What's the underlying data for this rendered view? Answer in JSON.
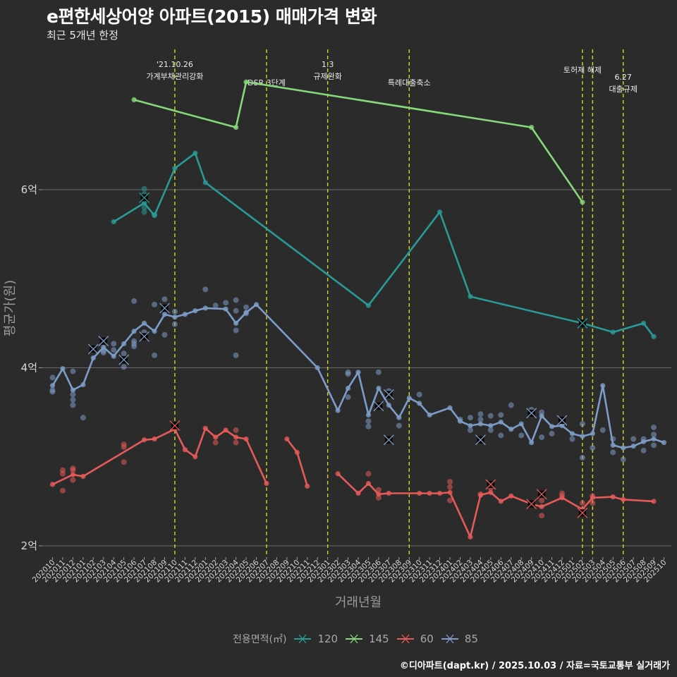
{
  "header": {
    "title": "e편한세상어양 아파트(2015) 매매가격 변화",
    "subtitle": "최근 5개년 한정"
  },
  "caption": "©디아파트(dapt.kr) / 2025.10.03 / 자료=국토교통부 실거래가",
  "legend": {
    "title": "전용면적(㎡)",
    "items": [
      {
        "label": "120",
        "color": "#2a9a96"
      },
      {
        "label": "145",
        "color": "#86d97a"
      },
      {
        "label": "60",
        "color": "#e65a5a"
      },
      {
        "label": "85",
        "color": "#7d9dc8"
      }
    ]
  },
  "chart_data": {
    "type": "line",
    "title": "e편한세상어양 아파트(2015) 매매가격 변화",
    "subtitle": "최근 5개년 한정",
    "xlabel": "거래년월",
    "ylabel": "평균가(원)",
    "ylim": [
      1.95,
      7.35
    ],
    "yunit": "억",
    "yticks": [
      {
        "value": 2,
        "label": "2억"
      },
      {
        "value": 4,
        "label": "4억"
      },
      {
        "value": 6,
        "label": "6억"
      }
    ],
    "grid": true,
    "legend_position": "bottom",
    "x": [
      "202010",
      "202011",
      "202012",
      "202101",
      "202102",
      "202103",
      "202104",
      "202105",
      "202106",
      "202107",
      "202108",
      "202109",
      "202110",
      "202111",
      "202112",
      "202201",
      "202202",
      "202203",
      "202204",
      "202205",
      "202206",
      "202207",
      "202208",
      "202209",
      "202210",
      "202211",
      "202212",
      "202301",
      "202302",
      "202303",
      "202304",
      "202305",
      "202306",
      "202307",
      "202308",
      "202309",
      "202310",
      "202311",
      "202312",
      "202401",
      "202402",
      "202403",
      "202404",
      "202405",
      "202406",
      "202407",
      "202408",
      "202409",
      "202410",
      "202411",
      "202412",
      "202501",
      "202502",
      "202503",
      "202504",
      "202505",
      "202506",
      "202507",
      "202508",
      "202509",
      "202510"
    ],
    "annotations": [
      {
        "month": "202110",
        "lines": [
          "'21.10.26",
          "가계부채관리강화"
        ]
      },
      {
        "month": "202207",
        "lines": [
          "DSR 3단계"
        ]
      },
      {
        "month": "202301",
        "lines": [
          "1.3",
          "규제완화"
        ]
      },
      {
        "month": "202309",
        "lines": [
          "특례대출축소"
        ]
      },
      {
        "month": "202502",
        "lines": [
          "토허제 해제"
        ]
      },
      {
        "month": "202503",
        "lines": []
      },
      {
        "month": "202506",
        "lines": [
          "6.27",
          "대출규제"
        ]
      }
    ],
    "series": [
      {
        "name": "120",
        "color": "#2a9a96",
        "segments": [
          [
            [
              "202104",
              5.64
            ],
            [
              "202107",
              5.85
            ],
            [
              "202108",
              5.71
            ],
            [
              "202110",
              6.24
            ],
            [
              "202112",
              6.41
            ],
            [
              "202201",
              6.08
            ],
            [
              "202305",
              4.7
            ],
            [
              "202312",
              5.75
            ],
            [
              "202403",
              4.8
            ],
            [
              "202502",
              4.5
            ],
            [
              "202505",
              4.4
            ],
            [
              "202508",
              4.5
            ],
            [
              "202509",
              4.35
            ]
          ]
        ],
        "points": [
          [
            "202107",
            6.01
          ],
          [
            "202107",
            5.95
          ],
          [
            "202107",
            5.8
          ],
          [
            "202107",
            5.75
          ],
          [
            "202108",
            5.72
          ],
          [
            "202502",
            4.5
          ]
        ],
        "cancelled": [
          [
            "202107",
            5.91
          ],
          [
            "202502",
            4.5
          ]
        ]
      },
      {
        "name": "145",
        "color": "#86d97a",
        "segments": [
          [
            [
              "202106",
              7.01
            ],
            [
              "202204",
              6.7
            ],
            [
              "202205",
              7.21
            ],
            [
              "202409",
              6.7
            ],
            [
              "202502",
              5.86
            ]
          ]
        ],
        "points": [],
        "cancelled": []
      },
      {
        "name": "60",
        "color": "#e65a5a",
        "segments": [
          [
            [
              "202010",
              2.69
            ],
            [
              "202012",
              2.8
            ],
            [
              "202101",
              2.78
            ],
            [
              "202107",
              3.19
            ],
            [
              "202108",
              3.2
            ],
            [
              "202110",
              3.31
            ],
            [
              "202111",
              3.08
            ],
            [
              "202112",
              3.0
            ],
            [
              "202201",
              3.32
            ],
            [
              "202202",
              3.22
            ],
            [
              "202203",
              3.3
            ],
            [
              "202204",
              3.22
            ],
            [
              "202205",
              3.2
            ],
            [
              "202207",
              2.7
            ]
          ],
          [
            [
              "202209",
              3.2
            ],
            [
              "202210",
              3.05
            ],
            [
              "202211",
              2.67
            ]
          ],
          [
            [
              "202302",
              2.81
            ],
            [
              "202304",
              2.59
            ],
            [
              "202305",
              2.7
            ],
            [
              "202306",
              2.58
            ],
            [
              "202307",
              2.59
            ],
            [
              "202310",
              2.59
            ],
            [
              "202311",
              2.59
            ],
            [
              "202312",
              2.59
            ],
            [
              "202401",
              2.6
            ],
            [
              "202403",
              2.1
            ],
            [
              "202404",
              2.57
            ],
            [
              "202405",
              2.6
            ],
            [
              "202406",
              2.5
            ],
            [
              "202407",
              2.56
            ],
            [
              "202409",
              2.47
            ],
            [
              "202410",
              2.44
            ],
            [
              "202412",
              2.54
            ],
            [
              "202502",
              2.41
            ],
            [
              "202503",
              2.54
            ],
            [
              "202505",
              2.55
            ],
            [
              "202506",
              2.52
            ],
            [
              "202509",
              2.5
            ]
          ]
        ],
        "points": [
          [
            "202011",
            2.85
          ],
          [
            "202011",
            2.81
          ],
          [
            "202011",
            2.62
          ],
          [
            "202012",
            2.87
          ],
          [
            "202012",
            2.85
          ],
          [
            "202012",
            2.74
          ],
          [
            "202105",
            3.14
          ],
          [
            "202105",
            3.11
          ],
          [
            "202105",
            2.94
          ],
          [
            "202202",
            3.16
          ],
          [
            "202204",
            3.3
          ],
          [
            "202204",
            3.16
          ],
          [
            "202305",
            2.81
          ],
          [
            "202306",
            2.63
          ],
          [
            "202306",
            2.54
          ],
          [
            "202401",
            2.72
          ],
          [
            "202401",
            2.66
          ],
          [
            "202401",
            2.51
          ],
          [
            "202404",
            2.58
          ],
          [
            "202405",
            2.65
          ],
          [
            "202410",
            2.34
          ],
          [
            "202410",
            2.51
          ],
          [
            "202412",
            2.59
          ],
          [
            "202412",
            2.56
          ],
          [
            "202502",
            2.48
          ],
          [
            "202503",
            2.56
          ],
          [
            "202503",
            2.48
          ]
        ],
        "cancelled": [
          [
            "202110",
            3.35
          ],
          [
            "202405",
            2.69
          ],
          [
            "202409",
            2.47
          ],
          [
            "202410",
            2.58
          ],
          [
            "202502",
            2.37
          ]
        ]
      },
      {
        "name": "85",
        "color": "#7d9dc8",
        "segments": [
          [
            [
              "202010",
              3.8
            ],
            [
              "202011",
              3.99
            ],
            [
              "202012",
              3.75
            ],
            [
              "202101",
              3.81
            ],
            [
              "202102",
              4.11
            ],
            [
              "202103",
              4.23
            ],
            [
              "202104",
              4.13
            ],
            [
              "202105",
              4.27
            ],
            [
              "202106",
              4.41
            ],
            [
              "202107",
              4.5
            ],
            [
              "202108",
              4.41
            ],
            [
              "202109",
              4.6
            ],
            [
              "202110",
              4.57
            ],
            [
              "202111",
              4.6
            ],
            [
              "202112",
              4.64
            ],
            [
              "202201",
              4.67
            ],
            [
              "202203",
              4.66
            ],
            [
              "202204",
              4.5
            ],
            [
              "202205",
              4.62
            ],
            [
              "202206",
              4.71
            ],
            [
              "202212",
              4.0
            ],
            [
              "202302",
              3.52
            ],
            [
              "202303",
              3.77
            ],
            [
              "202304",
              3.95
            ],
            [
              "202305",
              3.47
            ],
            [
              "202306",
              3.77
            ],
            [
              "202307",
              3.58
            ],
            [
              "202308",
              3.44
            ],
            [
              "202309",
              3.66
            ],
            [
              "202310",
              3.6
            ],
            [
              "202311",
              3.47
            ],
            [
              "202401",
              3.55
            ],
            [
              "202402",
              3.4
            ],
            [
              "202403",
              3.35
            ],
            [
              "202404",
              3.37
            ],
            [
              "202405",
              3.35
            ],
            [
              "202406",
              3.39
            ],
            [
              "202407",
              3.31
            ],
            [
              "202408",
              3.37
            ],
            [
              "202409",
              3.16
            ],
            [
              "202410",
              3.46
            ],
            [
              "202411",
              3.34
            ],
            [
              "202412",
              3.35
            ],
            [
              "202501",
              3.26
            ],
            [
              "202502",
              3.23
            ],
            [
              "202503",
              3.26
            ],
            [
              "202504",
              3.8
            ],
            [
              "202505",
              3.13
            ],
            [
              "202506",
              3.1
            ],
            [
              "202507",
              3.12
            ],
            [
              "202508",
              3.17
            ],
            [
              "202509",
              3.2
            ],
            [
              "202510",
              3.16
            ]
          ]
        ],
        "points": [
          [
            "202010",
            3.89
          ],
          [
            "202010",
            3.75
          ],
          [
            "202010",
            3.73
          ],
          [
            "202012",
            3.96
          ],
          [
            "202012",
            3.7
          ],
          [
            "202012",
            3.64
          ],
          [
            "202012",
            3.58
          ],
          [
            "202101",
            3.44
          ],
          [
            "202103",
            4.19
          ],
          [
            "202103",
            4.17
          ],
          [
            "202104",
            4.27
          ],
          [
            "202104",
            4.2
          ],
          [
            "202105",
            4.16
          ],
          [
            "202105",
            4.01
          ],
          [
            "202106",
            4.3
          ],
          [
            "202106",
            4.27
          ],
          [
            "202106",
            4.24
          ],
          [
            "202106",
            4.75
          ],
          [
            "202107",
            4.4
          ],
          [
            "202108",
            4.71
          ],
          [
            "202108",
            4.14
          ],
          [
            "202109",
            4.37
          ],
          [
            "202109",
            4.77
          ],
          [
            "202110",
            4.63
          ],
          [
            "202110",
            4.49
          ],
          [
            "202201",
            4.88
          ],
          [
            "202202",
            4.7
          ],
          [
            "202203",
            4.73
          ],
          [
            "202204",
            4.76
          ],
          [
            "202204",
            4.64
          ],
          [
            "202205",
            4.68
          ],
          [
            "202205",
            4.61
          ],
          [
            "202204",
            4.42
          ],
          [
            "202204",
            4.14
          ],
          [
            "202303",
            3.95
          ],
          [
            "202303",
            3.93
          ],
          [
            "202303",
            3.67
          ],
          [
            "202305",
            3.4
          ],
          [
            "202305",
            3.34
          ],
          [
            "202306",
            3.95
          ],
          [
            "202307",
            3.74
          ],
          [
            "202308",
            3.35
          ],
          [
            "202310",
            3.7
          ],
          [
            "202402",
            3.42
          ],
          [
            "202403",
            3.44
          ],
          [
            "202403",
            3.3
          ],
          [
            "202404",
            3.48
          ],
          [
            "202404",
            3.42
          ],
          [
            "202405",
            3.46
          ],
          [
            "202405",
            3.3
          ],
          [
            "202406",
            3.47
          ],
          [
            "202406",
            3.24
          ],
          [
            "202407",
            3.58
          ],
          [
            "202408",
            3.24
          ],
          [
            "202409",
            3.53
          ],
          [
            "202410",
            3.5
          ],
          [
            "202410",
            3.22
          ],
          [
            "202411",
            3.26
          ],
          [
            "202412",
            3.38
          ],
          [
            "202501",
            3.2
          ],
          [
            "202502",
            3.37
          ],
          [
            "202502",
            2.99
          ],
          [
            "202503",
            3.1
          ],
          [
            "202504",
            3.3
          ],
          [
            "202505",
            3.2
          ],
          [
            "202505",
            3.05
          ],
          [
            "202506",
            2.97
          ],
          [
            "202507",
            3.2
          ],
          [
            "202508",
            3.07
          ],
          [
            "202508",
            3.2
          ],
          [
            "202509",
            3.33
          ],
          [
            "202509",
            3.25
          ],
          [
            "202509",
            3.13
          ]
        ],
        "cancelled": [
          [
            "202102",
            4.21
          ],
          [
            "202103",
            4.3
          ],
          [
            "202105",
            4.09
          ],
          [
            "202107",
            4.35
          ],
          [
            "202109",
            4.67
          ],
          [
            "202306",
            3.57
          ],
          [
            "202307",
            3.7
          ],
          [
            "202307",
            3.19
          ],
          [
            "202404",
            3.19
          ],
          [
            "202409",
            3.49
          ],
          [
            "202412",
            3.41
          ]
        ]
      }
    ]
  }
}
